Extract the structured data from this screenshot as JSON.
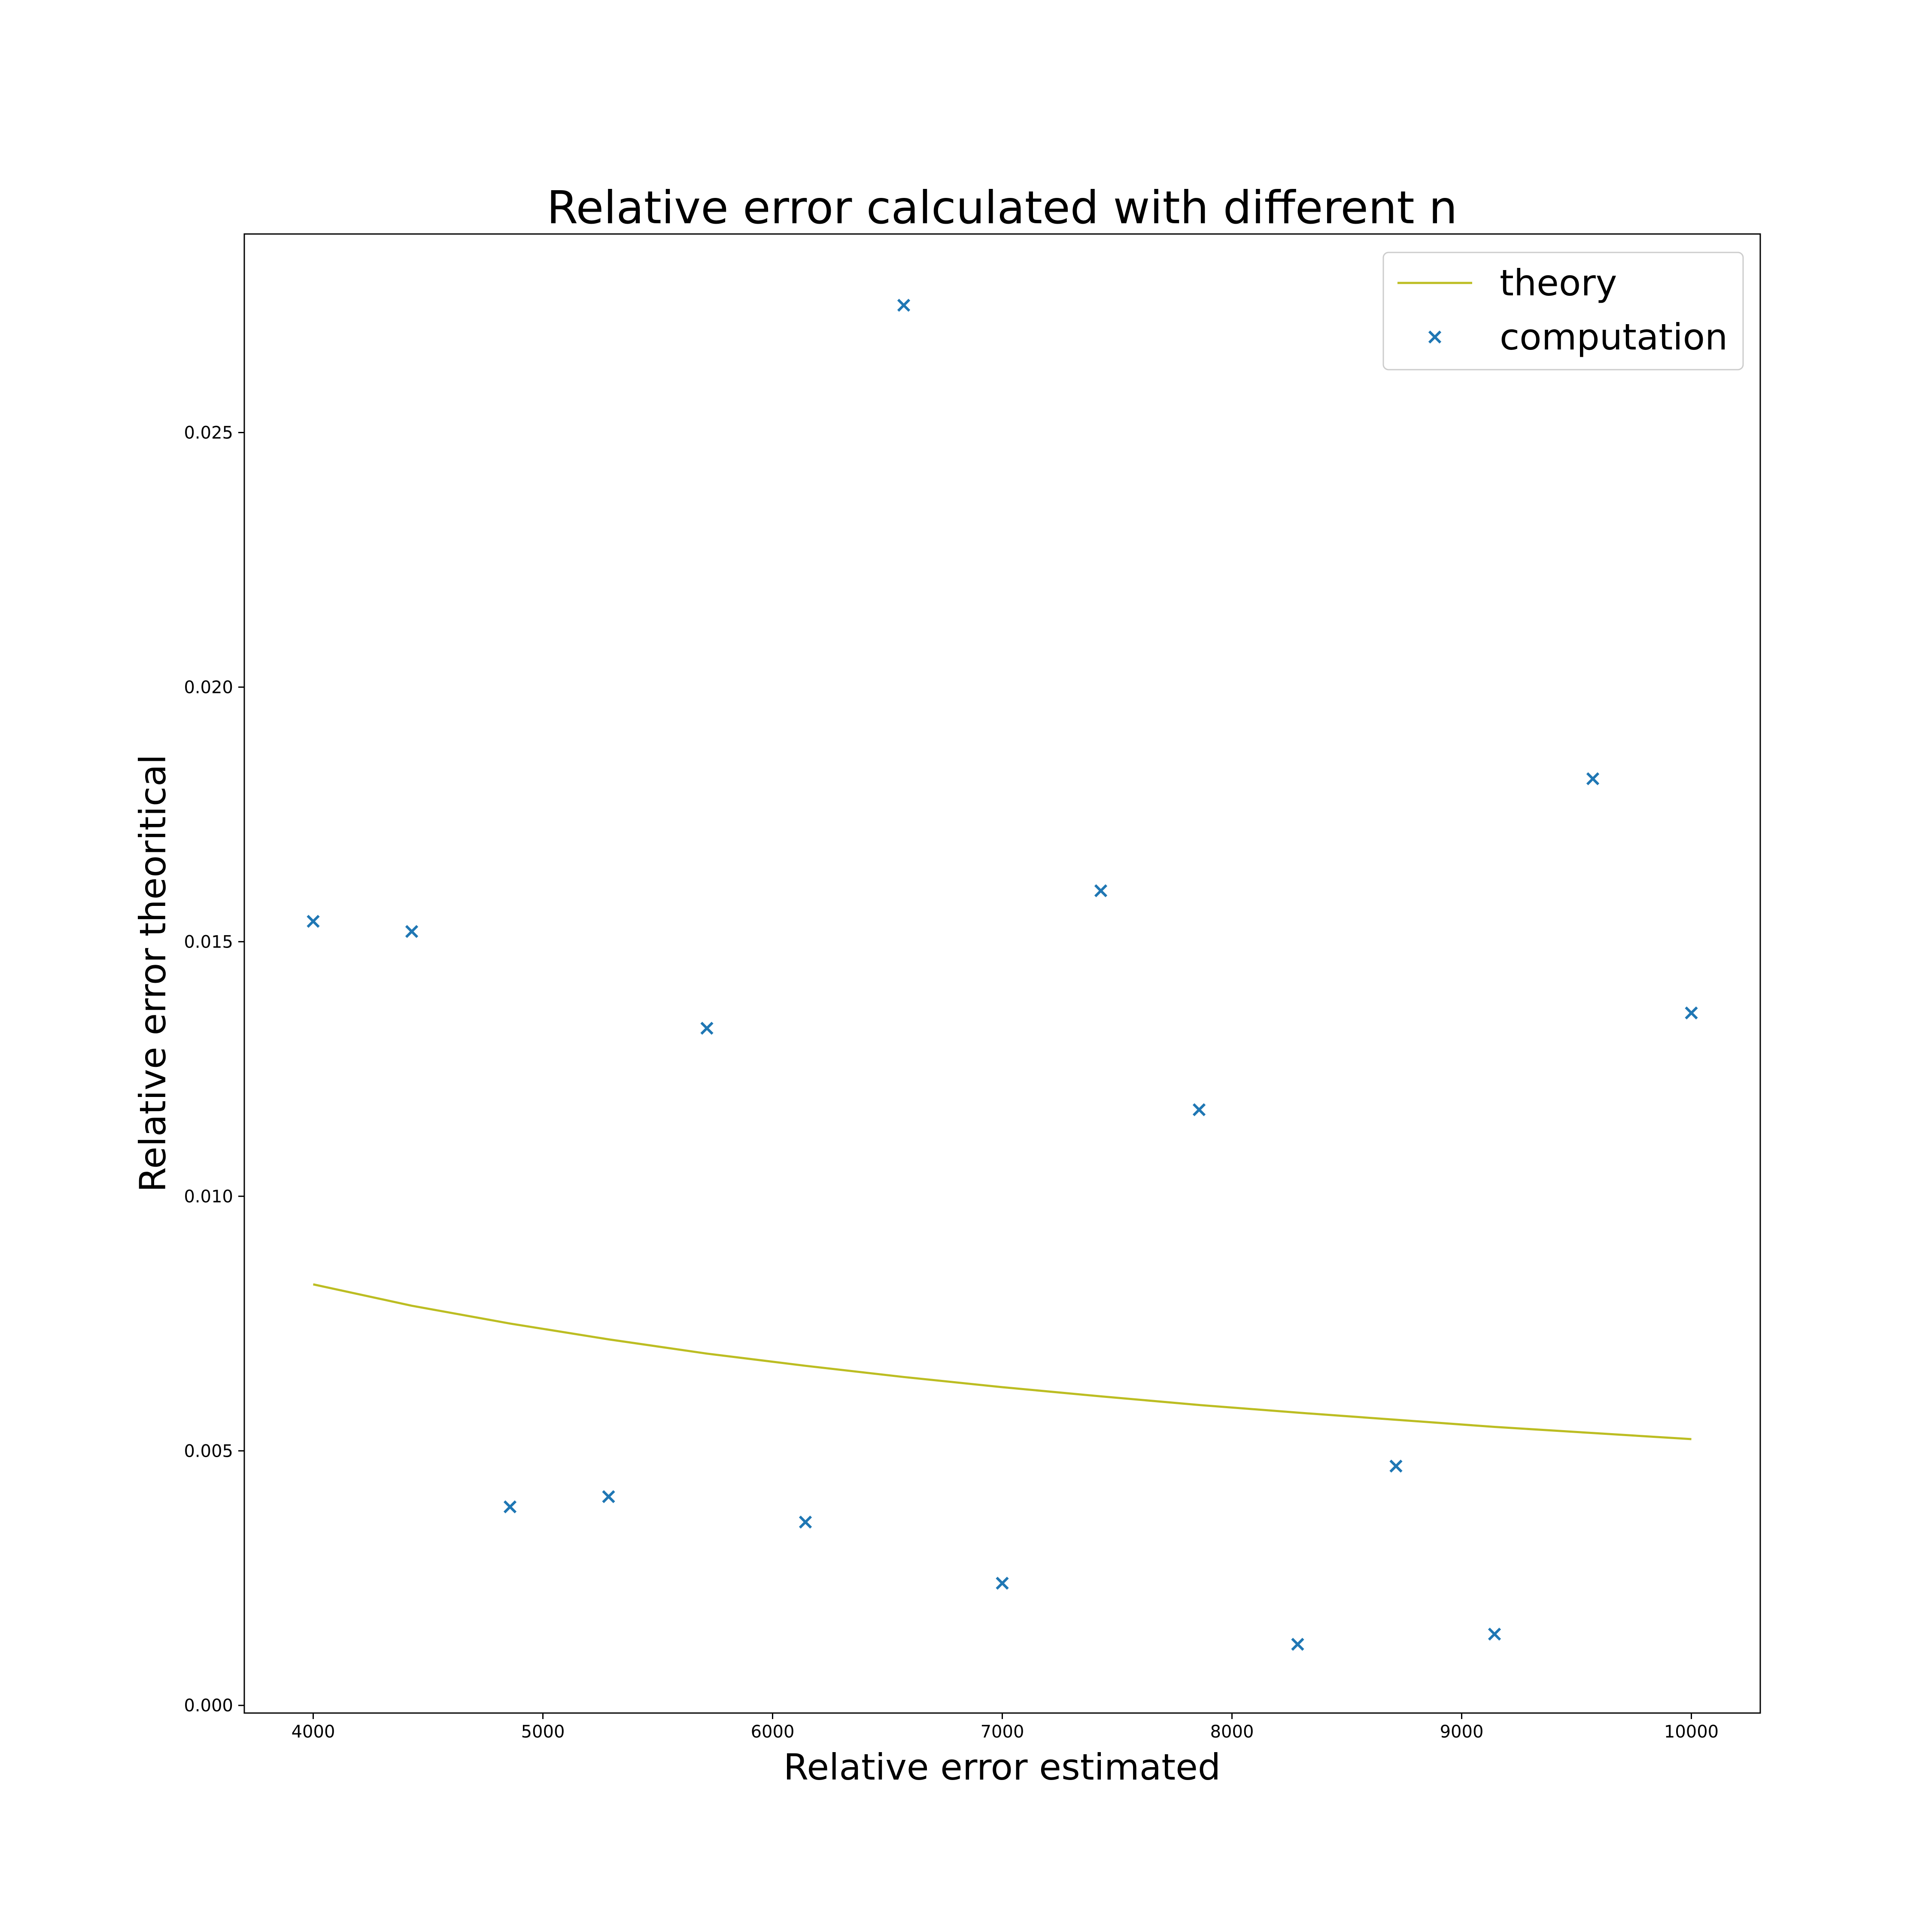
{
  "chart_data": {
    "type": "scatter",
    "title": "Relative error calculated with different n",
    "xlabel": "Relative error estimated",
    "ylabel": "Relative error theoritical",
    "xlim": [
      3700,
      10300
    ],
    "ylim": [
      -0.00015,
      0.0289
    ],
    "xticks": [
      4000,
      5000,
      6000,
      7000,
      8000,
      9000,
      10000
    ],
    "xtick_labels": [
      "4000",
      "5000",
      "6000",
      "7000",
      "8000",
      "9000",
      "10000"
    ],
    "yticks": [
      0.0,
      0.005,
      0.01,
      0.015,
      0.02,
      0.025
    ],
    "ytick_labels": [
      "0.000",
      "0.005",
      "0.010",
      "0.015",
      "0.020",
      "0.025"
    ],
    "grid": false,
    "legend_position": "top-right",
    "series": [
      {
        "name": "theory",
        "kind": "line",
        "color": "#bcbd22",
        "x": [
          4000,
          4429,
          4857,
          5286,
          5714,
          6143,
          6571,
          7000,
          7429,
          7857,
          8286,
          8714,
          9143,
          9571,
          10000
        ],
        "y": [
          0.00827,
          0.00785,
          0.0075,
          0.00719,
          0.00691,
          0.00667,
          0.00645,
          0.00625,
          0.00607,
          0.0059,
          0.00575,
          0.00561,
          0.00547,
          0.00535,
          0.00523
        ]
      },
      {
        "name": "computation",
        "kind": "scatter",
        "marker": "x",
        "color": "#1f77b4",
        "x": [
          4000,
          4429,
          4857,
          5286,
          5714,
          6143,
          6571,
          7000,
          7429,
          7857,
          8286,
          8714,
          9143,
          9571,
          10000
        ],
        "y": [
          0.0154,
          0.0152,
          0.0039,
          0.0041,
          0.0133,
          0.0036,
          0.0275,
          0.0024,
          0.016,
          0.0117,
          0.0012,
          0.0047,
          0.0014,
          0.0182,
          0.0136
        ]
      }
    ]
  }
}
